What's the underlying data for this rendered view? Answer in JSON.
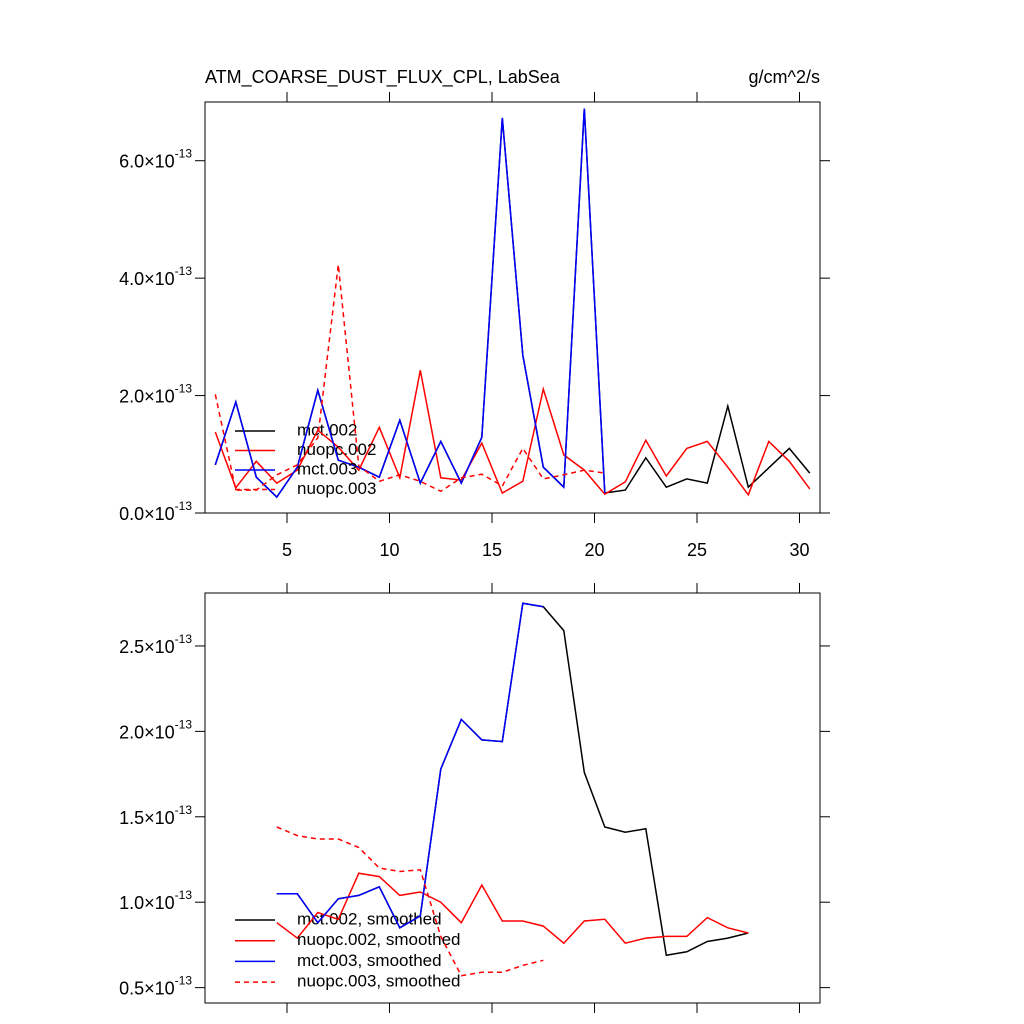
{
  "chart_data": [
    {
      "type": "line",
      "title": "ATM_COARSE_DUST_FLUX_CPL, LabSea",
      "units": "g/cm^2/s",
      "x": [
        1.5,
        2.5,
        3.5,
        4.5,
        5.5,
        6.5,
        7.5,
        8.5,
        9.5,
        10.5,
        11.5,
        12.5,
        13.5,
        14.5,
        15.5,
        16.5,
        17.5,
        18.5,
        19.5,
        20.5,
        21.5,
        22.5,
        23.5,
        24.5,
        25.5,
        26.5,
        27.5,
        28.5,
        29.5,
        30.5
      ],
      "xlim": [
        1,
        31
      ],
      "xticks": [
        5,
        10,
        15,
        20,
        25,
        30
      ],
      "xtick_labels": true,
      "ylim": [
        0,
        7e-13
      ],
      "yticks": [
        {
          "value": 0,
          "label": "0.0×10",
          "exponent": "-13"
        },
        {
          "value": 2e-13,
          "label": "2.0×10",
          "exponent": "-13"
        },
        {
          "value": 4e-13,
          "label": "4.0×10",
          "exponent": "-13"
        },
        {
          "value": 6e-13,
          "label": "6.0×10",
          "exponent": "-13"
        }
      ],
      "legend": "lower left",
      "series": [
        {
          "name": "mct.002",
          "color": "#000000",
          "dash": false,
          "values": [
            8.2e-14,
            1.89e-13,
            6.1e-14,
            2.7e-14,
            7.8e-14,
            2.09e-13,
            9e-14,
            7.8e-14,
            6.1e-14,
            1.58e-13,
            5.1e-14,
            1.22e-13,
            5.1e-14,
            1.29e-13,
            6.73e-13,
            2.69e-13,
            7.8e-14,
            4.4e-14,
            6.89e-13,
            3.4e-14,
            3.9e-14,
            9.4e-14,
            4.4e-14,
            5.8e-14,
            5.1e-14,
            1.82e-13,
            4.4e-14,
            7.7e-14,
            1.1e-13,
            6.8e-14
          ]
        },
        {
          "name": "nuopc.002",
          "color": "#ff0000",
          "dash": false,
          "values": [
            1.38e-13,
            4.3e-14,
            8.8e-14,
            5.1e-14,
            7.3e-14,
            1.41e-13,
            1.12e-13,
            7.3e-14,
            1.46e-13,
            6e-14,
            2.43e-13,
            6e-14,
            5.6e-14,
            1.19e-13,
            3.4e-14,
            5.4e-14,
            2.11e-13,
            9.9e-14,
            7.3e-14,
            3.2e-14,
            5.3e-14,
            1.24e-13,
            6.3e-14,
            1.1e-13,
            1.22e-13,
            7.8e-14,
            3.1e-14,
            1.22e-13,
            8.8e-14,
            4.1e-14
          ]
        },
        {
          "name": "mct.003",
          "color": "#0000ff",
          "dash": false,
          "values": [
            8.2e-14,
            1.89e-13,
            6.1e-14,
            2.7e-14,
            7.8e-14,
            2.09e-13,
            9e-14,
            7.8e-14,
            6.1e-14,
            1.58e-13,
            5.1e-14,
            1.22e-13,
            5.1e-14,
            1.29e-13,
            6.73e-13,
            2.69e-13,
            7.8e-14,
            4.4e-14,
            6.89e-13,
            3.4e-14,
            null,
            null,
            null,
            null,
            null,
            null,
            null,
            null,
            null,
            null
          ]
        },
        {
          "name": "nuopc.003",
          "color": "#ff0000",
          "dash": true,
          "values": [
            2.02e-13,
            3.9e-14,
            3.9e-14,
            6.5e-14,
            8.2e-14,
            1.28e-13,
            4.23e-13,
            8e-14,
            5.4e-14,
            6.5e-14,
            5.4e-14,
            3.7e-14,
            6e-14,
            6.6e-14,
            4.6e-14,
            1.1e-13,
            5.8e-14,
            6.5e-14,
            7.3e-14,
            6.8e-14,
            null,
            null,
            null,
            null,
            null,
            null,
            null,
            null,
            null,
            null
          ]
        }
      ]
    },
    {
      "type": "line",
      "x": [
        1.5,
        2.5,
        3.5,
        4.5,
        5.5,
        6.5,
        7.5,
        8.5,
        9.5,
        10.5,
        11.5,
        12.5,
        13.5,
        14.5,
        15.5,
        16.5,
        17.5,
        18.5,
        19.5,
        20.5,
        21.5,
        22.5,
        23.5,
        24.5,
        25.5,
        26.5,
        27.5,
        28.5,
        29.5,
        30.5
      ],
      "xlim": [
        1,
        31
      ],
      "xticks": [
        5,
        10,
        15,
        20,
        25,
        30
      ],
      "xtick_labels": false,
      "ylim": [
        4.1e-14,
        2.81e-13
      ],
      "yticks": [
        {
          "value": 5e-14,
          "label": "0.5×10",
          "exponent": "-13"
        },
        {
          "value": 1e-13,
          "label": "1.0×10",
          "exponent": "-13"
        },
        {
          "value": 1.5e-13,
          "label": "1.5×10",
          "exponent": "-13"
        },
        {
          "value": 2e-13,
          "label": "2.0×10",
          "exponent": "-13"
        },
        {
          "value": 2.5e-13,
          "label": "2.5×10",
          "exponent": "-13"
        }
      ],
      "legend": "lower left",
      "series": [
        {
          "name": "mct.002, smoothed",
          "color": "#000000",
          "dash": false,
          "values": [
            null,
            null,
            null,
            1.05e-13,
            1.05e-13,
            8.8e-14,
            1.02e-13,
            1.04e-13,
            1.09e-13,
            8.5e-14,
            9.2e-14,
            1.78e-13,
            2.07e-13,
            1.95e-13,
            1.94e-13,
            2.75e-13,
            2.73e-13,
            2.59e-13,
            1.76e-13,
            1.44e-13,
            1.41e-13,
            1.43e-13,
            6.9e-14,
            7.1e-14,
            7.7e-14,
            7.9e-14,
            8.2e-14,
            null,
            null,
            null
          ]
        },
        {
          "name": "nuopc.002, smoothed",
          "color": "#ff0000",
          "dash": false,
          "values": [
            null,
            null,
            null,
            8.8e-14,
            7.9e-14,
            9.4e-14,
            9e-14,
            1.17e-13,
            1.15e-13,
            1.04e-13,
            1.06e-13,
            1e-13,
            8.8e-14,
            1.1e-13,
            8.9e-14,
            8.9e-14,
            8.6e-14,
            7.6e-14,
            8.9e-14,
            9e-14,
            7.6e-14,
            7.9e-14,
            8e-14,
            8e-14,
            9.1e-14,
            8.5e-14,
            8.2e-14,
            null,
            null,
            null
          ]
        },
        {
          "name": "mct.003, smoothed",
          "color": "#0000ff",
          "dash": false,
          "values": [
            null,
            null,
            null,
            1.05e-13,
            1.05e-13,
            8.8e-14,
            1.02e-13,
            1.04e-13,
            1.09e-13,
            8.5e-14,
            9.2e-14,
            1.78e-13,
            2.07e-13,
            1.95e-13,
            1.94e-13,
            2.75e-13,
            2.73e-13,
            null,
            null,
            null,
            null,
            null,
            null,
            null,
            null,
            null,
            null,
            null,
            null,
            null
          ]
        },
        {
          "name": "nuopc.003, smoothed",
          "color": "#ff0000",
          "dash": true,
          "values": [
            null,
            null,
            null,
            1.44e-13,
            1.39e-13,
            1.37e-13,
            1.37e-13,
            1.32e-13,
            1.2e-13,
            1.18e-13,
            1.19e-13,
            8e-14,
            5.7e-14,
            5.9e-14,
            5.9e-14,
            6.3e-14,
            6.6e-14,
            null,
            null,
            null,
            null,
            null,
            null,
            null,
            null,
            null,
            null,
            null,
            null,
            null
          ]
        }
      ]
    }
  ]
}
